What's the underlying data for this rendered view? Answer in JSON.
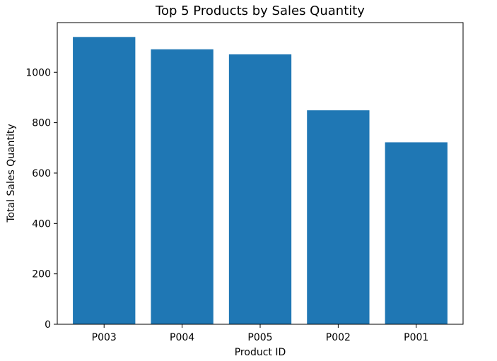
{
  "chart_data": {
    "type": "bar",
    "title": "Top 5 Products by Sales Quantity",
    "xlabel": "Product ID",
    "ylabel": "Total Sales Quantity",
    "categories": [
      "P003",
      "P004",
      "P005",
      "P002",
      "P001"
    ],
    "values": [
      1140,
      1091,
      1071,
      849,
      722
    ],
    "ylim": [
      0,
      1197
    ],
    "yticks": [
      0,
      200,
      400,
      600,
      800,
      1000
    ],
    "grid": false,
    "bar_color": "#1f77b4"
  }
}
